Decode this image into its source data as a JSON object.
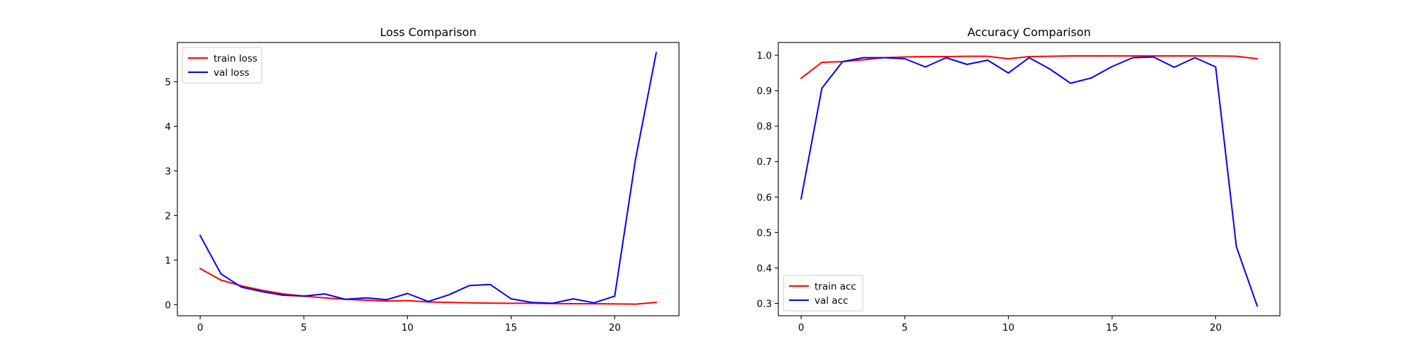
{
  "chart_data": [
    {
      "type": "line",
      "title": "Loss Comparison",
      "xlabel": "",
      "ylabel": "",
      "xlim": [
        -1.1,
        23.1
      ],
      "ylim": [
        -0.25,
        5.88
      ],
      "xticks": [
        0,
        5,
        10,
        15,
        20
      ],
      "yticks": [
        0,
        1,
        2,
        3,
        4,
        5
      ],
      "grid": false,
      "legend_position": "upper-left",
      "x": [
        0,
        1,
        2,
        3,
        4,
        5,
        6,
        7,
        8,
        9,
        10,
        11,
        12,
        13,
        14,
        15,
        16,
        17,
        18,
        19,
        20,
        21,
        22
      ],
      "series": [
        {
          "name": "train loss",
          "color": "#ff0000",
          "values": [
            0.81,
            0.55,
            0.42,
            0.32,
            0.24,
            0.19,
            0.15,
            0.12,
            0.1,
            0.08,
            0.09,
            0.06,
            0.05,
            0.04,
            0.035,
            0.03,
            0.03,
            0.025,
            0.02,
            0.02,
            0.015,
            0.01,
            0.05
          ]
        },
        {
          "name": "val loss",
          "color": "#0000ff",
          "values": [
            1.55,
            0.69,
            0.39,
            0.29,
            0.21,
            0.19,
            0.24,
            0.12,
            0.15,
            0.11,
            0.25,
            0.07,
            0.22,
            0.43,
            0.45,
            0.13,
            0.05,
            0.03,
            0.13,
            0.04,
            0.19,
            3.25,
            5.65
          ]
        }
      ]
    },
    {
      "type": "line",
      "title": "Accuracy Comparison",
      "xlabel": "",
      "ylabel": "",
      "xlim": [
        -1.1,
        23.1
      ],
      "ylim": [
        0.265,
        1.036
      ],
      "xticks": [
        0,
        5,
        10,
        15,
        20
      ],
      "yticks": [
        0.3,
        0.4,
        0.5,
        0.6,
        0.7,
        0.8,
        0.9,
        1.0
      ],
      "grid": false,
      "legend_position": "lower-left",
      "x": [
        0,
        1,
        2,
        3,
        4,
        5,
        6,
        7,
        8,
        9,
        10,
        11,
        12,
        13,
        14,
        15,
        16,
        17,
        18,
        19,
        20,
        21,
        22
      ],
      "series": [
        {
          "name": "train acc",
          "color": "#ff0000",
          "values": [
            0.935,
            0.98,
            0.982,
            0.987,
            0.993,
            0.995,
            0.996,
            0.996,
            0.997,
            0.997,
            0.99,
            0.996,
            0.997,
            0.998,
            0.998,
            0.998,
            0.998,
            0.998,
            0.998,
            0.998,
            0.998,
            0.997,
            0.99
          ]
        },
        {
          "name": "val acc",
          "color": "#0000ff",
          "values": [
            0.595,
            0.907,
            0.982,
            0.993,
            0.993,
            0.99,
            0.967,
            0.993,
            0.974,
            0.986,
            0.95,
            0.993,
            0.961,
            0.921,
            0.936,
            0.968,
            0.993,
            0.995,
            0.966,
            0.993,
            0.967,
            0.46,
            0.293
          ]
        }
      ]
    }
  ]
}
